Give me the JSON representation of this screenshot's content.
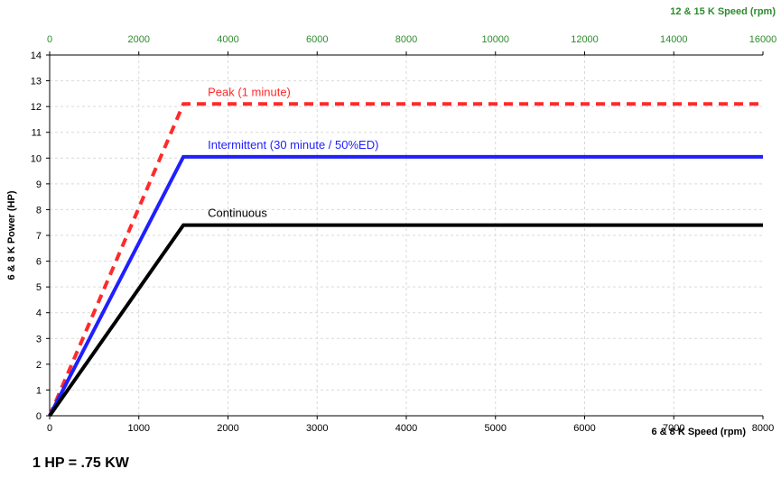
{
  "footnote": "1 HP = .75 KW",
  "chart_data": {
    "type": "line",
    "x_axis_bottom": {
      "label": "6 &  8 K Speed (rpm)",
      "range": [
        0,
        8000
      ],
      "ticks": [
        0,
        1000,
        2000,
        3000,
        4000,
        5000,
        6000,
        7000,
        8000
      ]
    },
    "x_axis_top": {
      "label": "12 & 15 K Speed (rpm)",
      "range": [
        0,
        16000
      ],
      "ticks": [
        0,
        2000,
        4000,
        6000,
        8000,
        10000,
        12000,
        14000,
        16000
      ],
      "color": "#2e8b2e"
    },
    "y_axis": {
      "label": "6 & 8 K Power (HP)",
      "range": [
        0,
        14
      ],
      "ticks": [
        0,
        1,
        2,
        3,
        4,
        5,
        6,
        7,
        8,
        9,
        10,
        11,
        12,
        13,
        14
      ]
    },
    "grid": true,
    "series": [
      {
        "name": "Peak (1 minute)",
        "color": "#ff2a2a",
        "style": "dashed",
        "x": [
          0,
          1500,
          8000
        ],
        "y": [
          0,
          12.1,
          12.1
        ]
      },
      {
        "name": "Intermittent (30 minute / 50%ED)",
        "color": "#1f1fff",
        "style": "solid",
        "x": [
          0,
          1500,
          8000
        ],
        "y": [
          0,
          10.05,
          10.05
        ]
      },
      {
        "name": "Continuous",
        "color": "#000000",
        "style": "solid",
        "x": [
          0,
          1500,
          8000
        ],
        "y": [
          0,
          7.4,
          7.4
        ]
      }
    ]
  }
}
